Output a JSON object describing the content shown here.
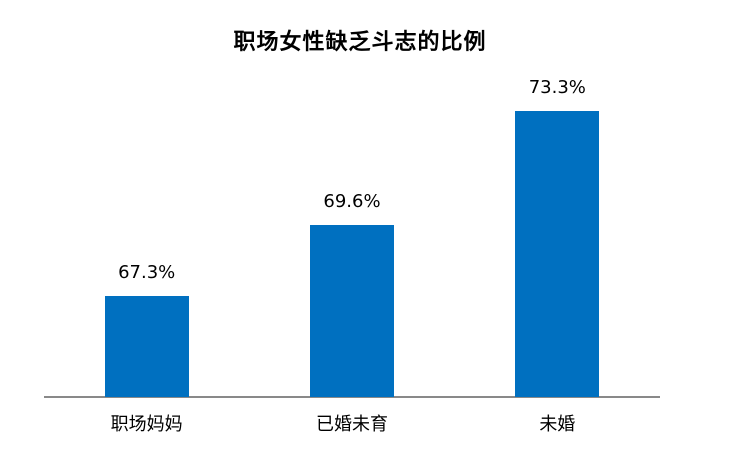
{
  "chart": {
    "title": "职场女性缺乏斗志的比例"
  },
  "chart_data": {
    "type": "bar",
    "title": "职场女性缺乏斗志的比例",
    "categories": [
      "职场妈妈",
      "已婚未育",
      "未婚"
    ],
    "values": [
      67.3,
      69.6,
      73.3
    ],
    "value_labels": [
      "67.3%",
      "69.6%",
      "73.3%"
    ],
    "xlabel": "",
    "ylabel": "",
    "ylim": [
      64,
      75
    ],
    "grid": false,
    "legend": false,
    "y_axis_visible": false,
    "bar_color": "#0070C0",
    "axis_line_color": "#898989",
    "text_color": "#000000",
    "background_color": "#FFFFFF"
  }
}
